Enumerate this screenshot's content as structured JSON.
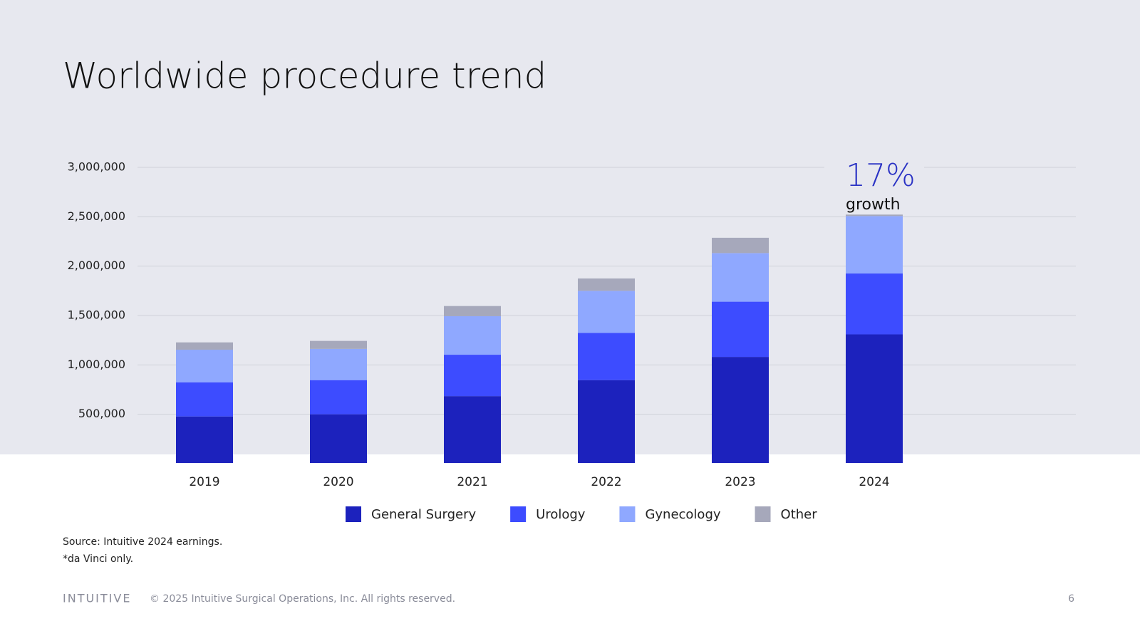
{
  "title": "Worldwide procedure trend",
  "chart_data": {
    "type": "stacked_bar",
    "categories": [
      "2019",
      "2020",
      "2021",
      "2022",
      "2023",
      "2024"
    ],
    "series": [
      {
        "name": "General Surgery",
        "color": "#1c22bd",
        "values": [
          478000,
          500000,
          684000,
          846000,
          1081000,
          1309000
        ]
      },
      {
        "name": "Urology",
        "color": "#3d4cff",
        "values": [
          346000,
          346000,
          419000,
          478000,
          559000,
          617000
        ]
      },
      {
        "name": "Gynecology",
        "color": "#8fa8ff",
        "values": [
          330000,
          316000,
          390000,
          426000,
          492000,
          581000
        ]
      },
      {
        "name": "Other",
        "color": "#a6a8bb",
        "values": [
          74000,
          81000,
          103000,
          125000,
          155000,
          15000
        ]
      }
    ],
    "ylim": [
      0,
      3000000
    ],
    "yticks": [
      {
        "value": 500000,
        "label": "500,000"
      },
      {
        "value": 1000000,
        "label": "1,000,000"
      },
      {
        "value": 1500000,
        "label": "1,500,000"
      },
      {
        "value": 2000000,
        "label": "2,000,000"
      },
      {
        "value": 2500000,
        "label": "2,500,000"
      },
      {
        "value": 3000000,
        "label": "3,000,000"
      }
    ],
    "grid": true,
    "annotation": {
      "value": "17%",
      "text": "growth"
    }
  },
  "notes": [
    "Source: Intuitive 2024 earnings.",
    "*da Vinci only."
  ],
  "footer": {
    "logo": "INTUITIVE",
    "copyright": "© 2025 Intuitive Surgical Operations, Inc. All rights reserved.",
    "page": "6"
  }
}
